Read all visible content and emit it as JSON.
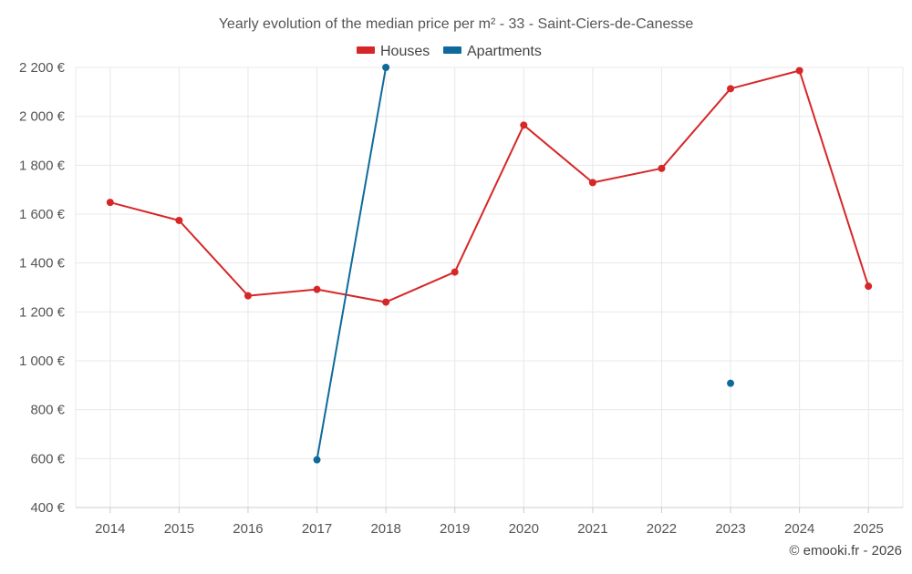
{
  "chart_data": {
    "type": "line",
    "title": "Yearly evolution of the median price per m² - 33 - Saint-Ciers-de-Canesse",
    "xlabel": "",
    "ylabel": "",
    "categories": [
      "2014",
      "2015",
      "2016",
      "2017",
      "2018",
      "2019",
      "2020",
      "2021",
      "2022",
      "2023",
      "2024",
      "2025"
    ],
    "ylim": [
      400,
      2200
    ],
    "yticks": [
      400,
      600,
      800,
      1000,
      1200,
      1400,
      1600,
      1800,
      2000,
      2200
    ],
    "ytick_labels": [
      "400 €",
      "600 €",
      "800 €",
      "1 000 €",
      "1 200 €",
      "1 400 €",
      "1 600 €",
      "1 800 €",
      "2 000 €",
      "2 200 €"
    ],
    "grid": true,
    "legend_position": "top-center",
    "series": [
      {
        "name": "Houses",
        "color": "#d62728",
        "values": [
          1648,
          1574,
          1266,
          1292,
          1240,
          1363,
          1964,
          1729,
          1787,
          2113,
          2187,
          1305
        ]
      },
      {
        "name": "Apartments",
        "color": "#0f6a9c",
        "values": [
          null,
          null,
          null,
          595,
          2200,
          null,
          null,
          null,
          null,
          908,
          null,
          null
        ]
      }
    ]
  },
  "credit": "© emooki.fr - 2026"
}
